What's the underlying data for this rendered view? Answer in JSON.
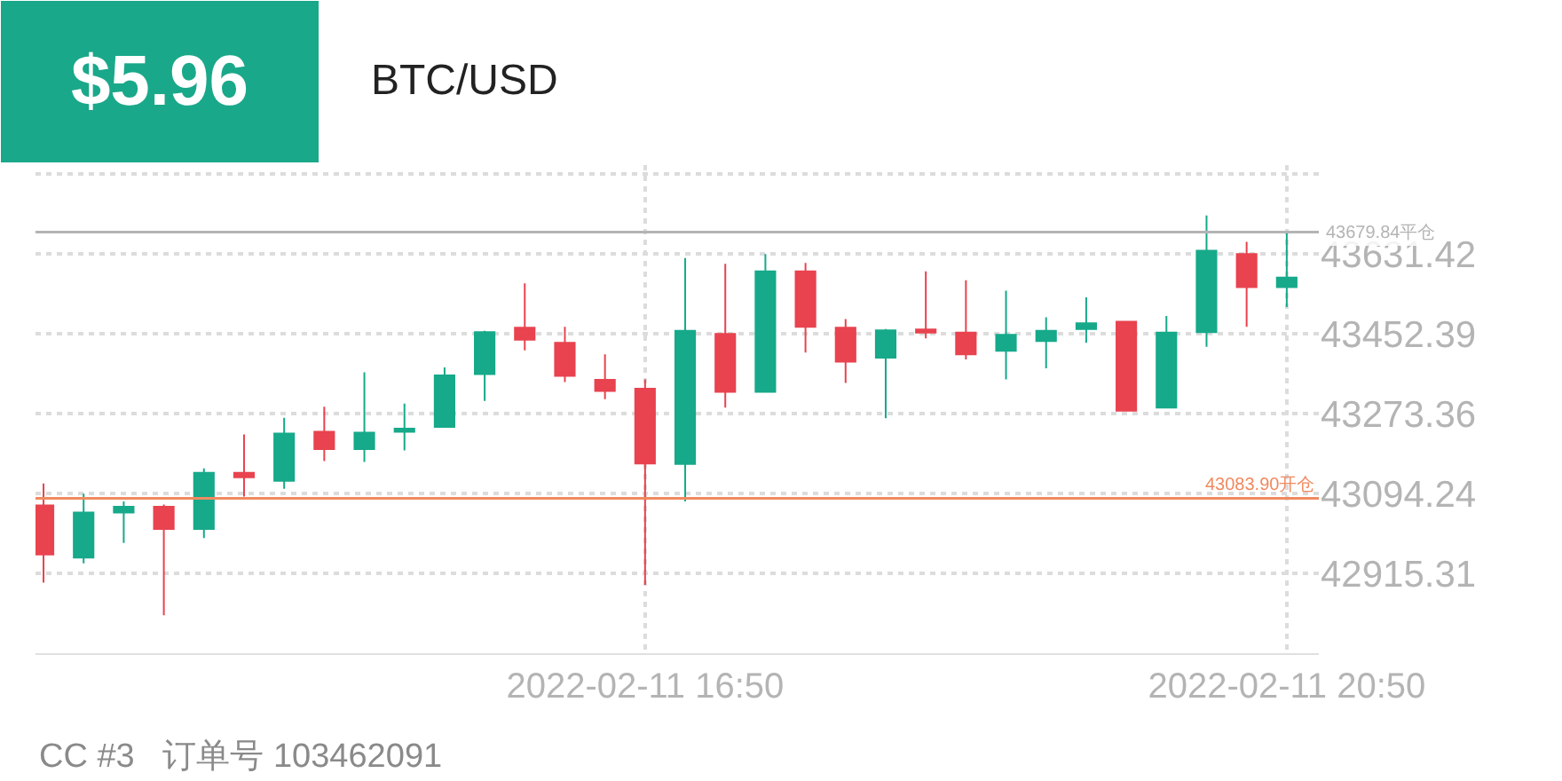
{
  "chart_data": {
    "type": "candlestick",
    "title": "$5.96",
    "subtitle": "BTC/USD",
    "x": [
      "2022-02-11T13:05",
      "2022-02-11T13:20",
      "2022-02-11T13:35",
      "2022-02-11T13:50",
      "2022-02-11T14:05",
      "2022-02-11T14:20",
      "2022-02-11T14:35",
      "2022-02-11T14:50",
      "2022-02-11T15:05",
      "2022-02-11T15:20",
      "2022-02-11T15:35",
      "2022-02-11T15:50",
      "2022-02-11T16:05",
      "2022-02-11T16:20",
      "2022-02-11T16:35",
      "2022-02-11T16:50",
      "2022-02-11T17:05",
      "2022-02-11T17:20",
      "2022-02-11T17:35",
      "2022-02-11T17:50",
      "2022-02-11T18:05",
      "2022-02-11T18:20",
      "2022-02-11T18:35",
      "2022-02-11T18:50",
      "2022-02-11T19:05",
      "2022-02-11T19:20",
      "2022-02-11T19:35",
      "2022-02-11T19:50",
      "2022-02-11T20:05",
      "2022-02-11T20:20",
      "2022-02-11T20:35",
      "2022-02-11T20:50"
    ],
    "ohlc": [
      [
        43068,
        43117,
        42895,
        42958
      ],
      [
        42951,
        43094,
        42938,
        43052
      ],
      [
        43052,
        43077,
        42984,
        43065
      ],
      [
        43065,
        43070,
        42822,
        43015
      ],
      [
        43015,
        43151,
        42995,
        43141
      ],
      [
        43141,
        43227,
        43088,
        43131
      ],
      [
        43123,
        43264,
        43105,
        43229
      ],
      [
        43233,
        43289,
        43167,
        43194
      ],
      [
        43194,
        43366,
        43165,
        43231
      ],
      [
        43233,
        43296,
        43191,
        43240
      ],
      [
        43244,
        43377,
        43244,
        43359
      ],
      [
        43362,
        43459,
        43302,
        43456
      ],
      [
        43466,
        43565,
        43415,
        43439
      ],
      [
        43432,
        43468,
        43344,
        43358
      ],
      [
        43349,
        43406,
        43306,
        43324
      ],
      [
        43329,
        43350,
        42890,
        43162
      ],
      [
        43161,
        43622,
        43077,
        43459
      ],
      [
        43452,
        43609,
        43287,
        43322
      ],
      [
        43322,
        43631,
        43322,
        43592
      ],
      [
        43592,
        43611,
        43410,
        43468
      ],
      [
        43466,
        43485,
        43342,
        43390
      ],
      [
        43399,
        43463,
        43263,
        43460
      ],
      [
        43462,
        43592,
        43442,
        43455
      ],
      [
        43455,
        43572,
        43395,
        43406
      ],
      [
        43414,
        43549,
        43350,
        43450
      ],
      [
        43436,
        43489,
        43375,
        43459
      ],
      [
        43463,
        43534,
        43432,
        43476
      ],
      [
        43479,
        43479,
        43280,
        43280
      ],
      [
        43287,
        43492,
        43287,
        43455
      ],
      [
        43456,
        43717,
        43423,
        43638
      ],
      [
        43631,
        43658,
        43468,
        43557
      ],
      [
        43557,
        43682,
        43512,
        43578
      ]
    ],
    "colors": [
      "#e8434f",
      "#16a98a",
      "#16a98a",
      "#e8434f",
      "#16a98a",
      "#e8434f",
      "#16a98a",
      "#e8434f",
      "#16a98a",
      "#16a98a",
      "#16a98a",
      "#16a98a",
      "#e8434f",
      "#e8434f",
      "#e8434f",
      "#e8434f",
      "#16a98a",
      "#e8434f",
      "#16a98a",
      "#e8434f",
      "#e8434f",
      "#16a98a",
      "#e8434f",
      "#e8434f",
      "#16a98a",
      "#16a98a",
      "#16a98a",
      "#e8434f",
      "#16a98a",
      "#16a98a",
      "#e8434f",
      "#16a98a"
    ],
    "xlim": [
      "2022-02-11T13:02",
      "2022-02-11T21:02"
    ],
    "xticks": [
      {
        "value": "2022-02-11T16:50",
        "label": "2022-02-11 16:50"
      },
      {
        "value": "2022-02-11T20:50",
        "label": "2022-02-11 20:50"
      }
    ],
    "ylim": [
      42737,
      43830
    ],
    "yticks": [
      {
        "value": 43810.45,
        "label": null
      },
      42915.31,
      43094.24,
      43273.36,
      43452.39,
      43631.42
    ],
    "grid": true,
    "ref_lines": [
      {
        "axis": "y",
        "value": 43679.84,
        "label": "43679.84平仓",
        "color": "#b4b4b4",
        "line_style": "solid"
      },
      {
        "axis": "y",
        "value": 43083.9,
        "label": "43083.90开仓",
        "color": "#f08a60",
        "line_style": "solid"
      }
    ],
    "annotations": [
      "CC #3   订单号 103462091"
    ]
  }
}
